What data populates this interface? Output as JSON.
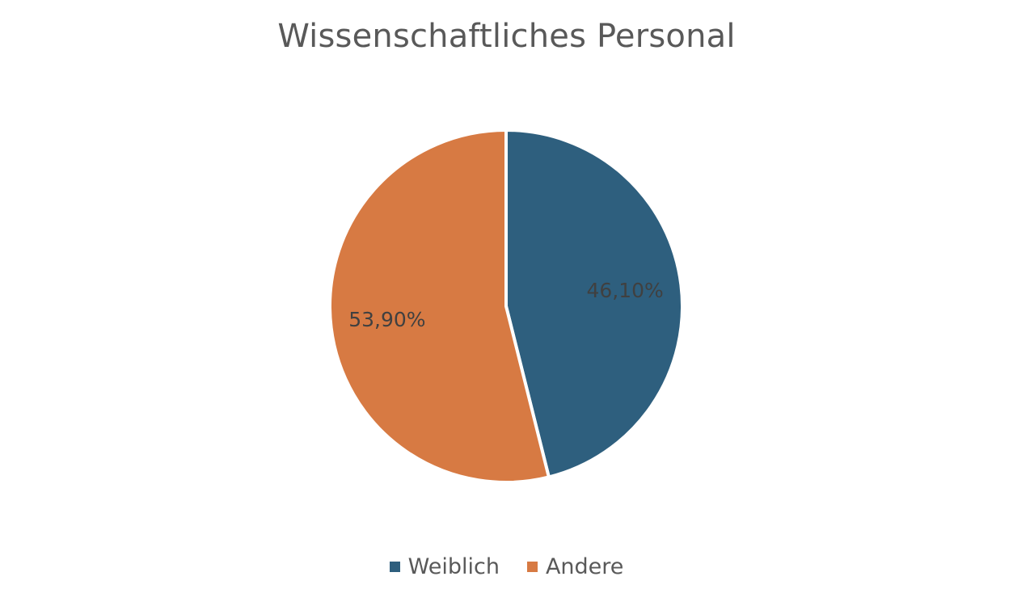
{
  "chart_data": {
    "type": "pie",
    "title": "Wissenschaftliches Personal",
    "categories": [
      "Weiblich",
      "Andere"
    ],
    "values": [
      46.1,
      53.9
    ],
    "data_labels": [
      "46,10%",
      "53,90%"
    ],
    "colors": [
      "#2E5F7E",
      "#D77A43"
    ],
    "legend_position": "bottom",
    "start_angle": "12 o'clock",
    "direction": "clockwise"
  },
  "legend": {
    "items": [
      {
        "label": "Weiblich",
        "color": "#2E5F7E"
      },
      {
        "label": "Andere",
        "color": "#D77A43"
      }
    ]
  }
}
